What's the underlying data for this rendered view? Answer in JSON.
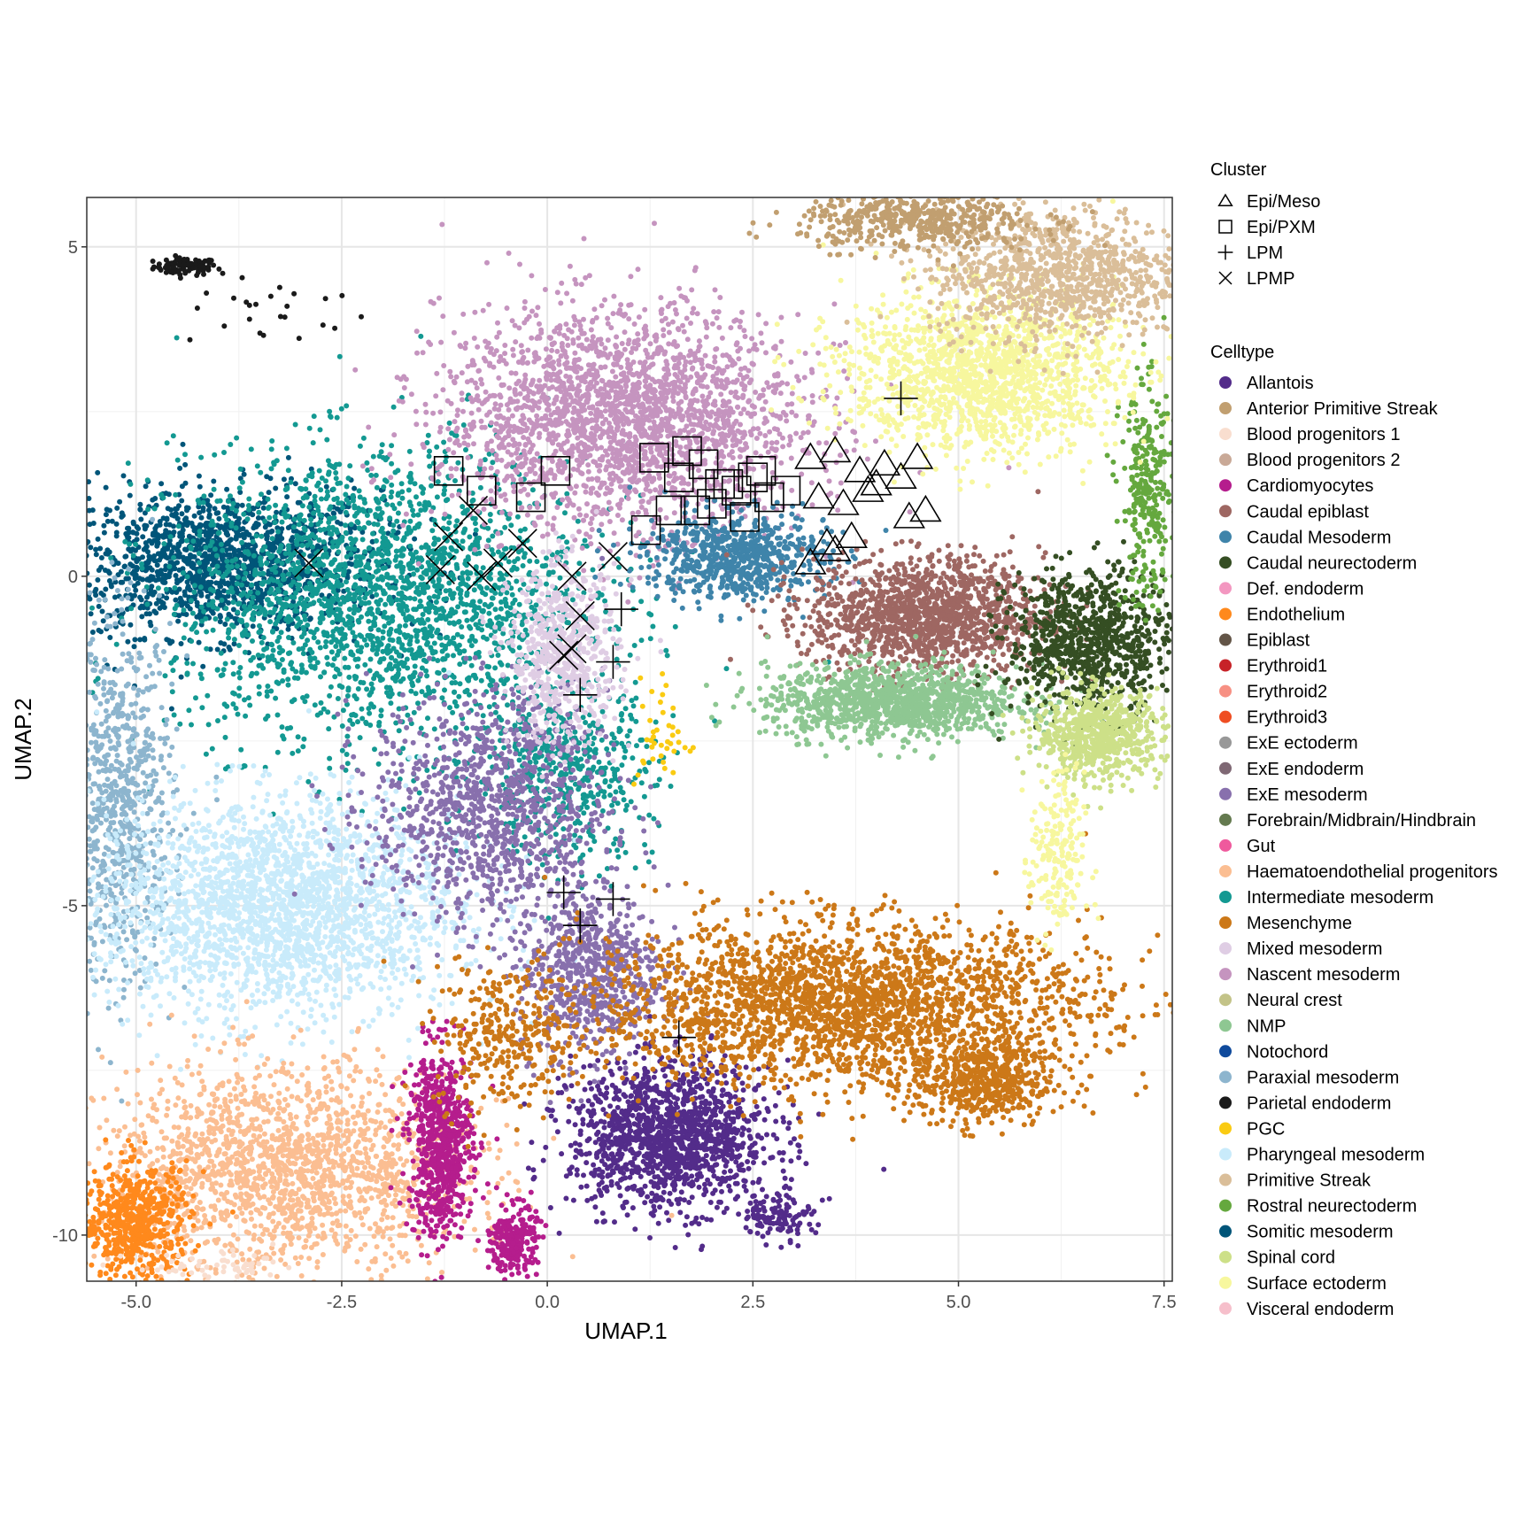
{
  "chart_data": {
    "type": "scatter",
    "xlabel": "UMAP.1",
    "ylabel": "UMAP.2",
    "xlim": [
      -5.6,
      7.6
    ],
    "ylim": [
      -10.7,
      5.75
    ],
    "xticks": [
      -5.0,
      -2.5,
      0.0,
      2.5,
      5.0,
      7.5
    ],
    "xtick_labels": [
      "-5.0",
      "-2.5",
      "0.0",
      "2.5",
      "5.0",
      "7.5"
    ],
    "yticks": [
      -10,
      -5,
      0,
      5
    ],
    "ytick_labels": [
      "-10",
      "-5",
      "0",
      "5"
    ],
    "grid": true,
    "legend_placement": "right",
    "legends": {
      "cluster_title": "Cluster",
      "celltype_title": "Celltype"
    },
    "clusters": [
      {
        "name": "Epi/Meso",
        "shape": "triangle"
      },
      {
        "name": "Epi/PXM",
        "shape": "square"
      },
      {
        "name": "LPM",
        "shape": "plus"
      },
      {
        "name": "LPMP",
        "shape": "cross"
      }
    ],
    "celltypes": [
      {
        "name": "Allantois",
        "color": "#532C8A"
      },
      {
        "name": "Anterior Primitive Streak",
        "color": "#C19F70"
      },
      {
        "name": "Blood progenitors 1",
        "color": "#F9DECF"
      },
      {
        "name": "Blood progenitors 2",
        "color": "#C9A997"
      },
      {
        "name": "Cardiomyocytes",
        "color": "#B51D8D"
      },
      {
        "name": "Caudal epiblast",
        "color": "#9E6762"
      },
      {
        "name": "Caudal Mesoderm",
        "color": "#3F84AA"
      },
      {
        "name": "Caudal neurectoderm",
        "color": "#354E23"
      },
      {
        "name": "Def. endoderm",
        "color": "#F397C0"
      },
      {
        "name": "Endothelium",
        "color": "#FF891C"
      },
      {
        "name": "Epiblast",
        "color": "#635547"
      },
      {
        "name": "Erythroid1",
        "color": "#C72228"
      },
      {
        "name": "Erythroid2",
        "color": "#F79083"
      },
      {
        "name": "Erythroid3",
        "color": "#EF4E22"
      },
      {
        "name": "ExE ectoderm",
        "color": "#989898"
      },
      {
        "name": "ExE endoderm",
        "color": "#7F6874"
      },
      {
        "name": "ExE mesoderm",
        "color": "#8870AD"
      },
      {
        "name": "Forebrain/Midbrain/Hindbrain",
        "color": "#647A4F"
      },
      {
        "name": "Gut",
        "color": "#EF5A9D"
      },
      {
        "name": "Haematoendothelial progenitors",
        "color": "#FBBE92"
      },
      {
        "name": "Intermediate mesoderm",
        "color": "#139992"
      },
      {
        "name": "Mesenchyme",
        "color": "#CC7818"
      },
      {
        "name": "Mixed mesoderm",
        "color": "#DFCDE4"
      },
      {
        "name": "Nascent mesoderm",
        "color": "#C594BF"
      },
      {
        "name": "Neural crest",
        "color": "#C3C388"
      },
      {
        "name": "NMP",
        "color": "#8EC792"
      },
      {
        "name": "Notochord",
        "color": "#0F4A9C"
      },
      {
        "name": "Paraxial mesoderm",
        "color": "#8DB5CE"
      },
      {
        "name": "Parietal endoderm",
        "color": "#1A1A1A"
      },
      {
        "name": "PGC",
        "color": "#FACB12"
      },
      {
        "name": "Pharyngeal mesoderm",
        "color": "#C9EBFB"
      },
      {
        "name": "Primitive Streak",
        "color": "#DABE99"
      },
      {
        "name": "Rostral neurectoderm",
        "color": "#65A83E"
      },
      {
        "name": "Somitic mesoderm",
        "color": "#005579"
      },
      {
        "name": "Spinal cord",
        "color": "#CDE088"
      },
      {
        "name": "Surface ectoderm",
        "color": "#F7F79E"
      },
      {
        "name": "Visceral endoderm",
        "color": "#F6BFCB"
      }
    ],
    "cell_clouds": [
      {
        "celltype": "Parietal endoderm",
        "x": -4.4,
        "y": 4.7,
        "rx": 0.35,
        "ry": 0.12,
        "n": 90
      },
      {
        "celltype": "Parietal endoderm",
        "x": -3.3,
        "y": 4.0,
        "rx": 1.0,
        "ry": 0.5,
        "n": 25
      },
      {
        "celltype": "Somitic mesoderm",
        "x": -4.0,
        "y": 0.2,
        "rx": 1.8,
        "ry": 1.0,
        "n": 1500
      },
      {
        "celltype": "Intermediate mesoderm",
        "x": -2.0,
        "y": -0.3,
        "rx": 2.3,
        "ry": 2.0,
        "n": 2300
      },
      {
        "celltype": "Intermediate mesoderm",
        "x": 0.2,
        "y": -3.0,
        "rx": 1.0,
        "ry": 1.2,
        "n": 500
      },
      {
        "celltype": "Paraxial mesoderm",
        "x": -5.2,
        "y": -3.5,
        "rx": 0.6,
        "ry": 2.4,
        "n": 800
      },
      {
        "celltype": "Pharyngeal mesoderm",
        "x": -3.3,
        "y": -5.0,
        "rx": 2.0,
        "ry": 1.5,
        "n": 2400
      },
      {
        "celltype": "Haematoendothelial progenitors",
        "x": -3.2,
        "y": -9.0,
        "rx": 2.0,
        "ry": 1.4,
        "n": 1800
      },
      {
        "celltype": "Endothelium",
        "x": -5.0,
        "y": -9.8,
        "rx": 0.6,
        "ry": 0.8,
        "n": 600
      },
      {
        "celltype": "Blood progenitors 1",
        "x": -4.0,
        "y": -10.5,
        "rx": 1.0,
        "ry": 0.2,
        "n": 60
      },
      {
        "celltype": "Cardiomyocytes",
        "x": -1.3,
        "y": -8.6,
        "rx": 0.35,
        "ry": 1.3,
        "n": 700
      },
      {
        "celltype": "Cardiomyocytes",
        "x": -0.4,
        "y": -10.1,
        "rx": 0.25,
        "ry": 0.5,
        "n": 250
      },
      {
        "celltype": "ExE mesoderm",
        "x": -0.7,
        "y": -3.5,
        "rx": 1.3,
        "ry": 1.6,
        "n": 1100
      },
      {
        "celltype": "ExE mesoderm",
        "x": 0.5,
        "y": -6.0,
        "rx": 0.8,
        "ry": 1.2,
        "n": 700
      },
      {
        "celltype": "Allantois",
        "x": 1.5,
        "y": -8.5,
        "rx": 1.1,
        "ry": 1.0,
        "n": 1400
      },
      {
        "celltype": "Allantois",
        "x": 2.8,
        "y": -9.7,
        "rx": 0.4,
        "ry": 0.3,
        "n": 120
      },
      {
        "celltype": "Mesenchyme",
        "x": 3.6,
        "y": -6.5,
        "rx": 2.8,
        "ry": 1.1,
        "n": 2600
      },
      {
        "celltype": "Mesenchyme",
        "x": 5.3,
        "y": -7.7,
        "rx": 0.8,
        "ry": 0.6,
        "n": 500
      },
      {
        "celltype": "Mesenchyme",
        "x": -0.5,
        "y": -7.0,
        "rx": 0.8,
        "ry": 1.0,
        "n": 300
      },
      {
        "celltype": "Nascent mesoderm",
        "x": 0.9,
        "y": 2.4,
        "rx": 2.0,
        "ry": 1.5,
        "n": 2400
      },
      {
        "celltype": "Mixed mesoderm",
        "x": 0.2,
        "y": -1.2,
        "rx": 0.6,
        "ry": 1.2,
        "n": 600
      },
      {
        "celltype": "Caudal Mesoderm",
        "x": 2.3,
        "y": 0.3,
        "rx": 1.0,
        "ry": 0.6,
        "n": 700
      },
      {
        "celltype": "Caudal epiblast",
        "x": 4.6,
        "y": -0.6,
        "rx": 1.3,
        "ry": 0.8,
        "n": 1400
      },
      {
        "celltype": "NMP",
        "x": 4.2,
        "y": -1.9,
        "rx": 1.4,
        "ry": 0.5,
        "n": 1200
      },
      {
        "celltype": "Caudal neurectoderm",
        "x": 6.6,
        "y": -1.0,
        "rx": 0.9,
        "ry": 1.0,
        "n": 900
      },
      {
        "celltype": "Spinal cord",
        "x": 6.7,
        "y": -2.4,
        "rx": 0.7,
        "ry": 0.6,
        "n": 700
      },
      {
        "celltype": "Rostral neurectoderm",
        "x": 7.3,
        "y": 1.2,
        "rx": 0.3,
        "ry": 1.5,
        "n": 300
      },
      {
        "celltype": "Surface ectoderm",
        "x": 5.3,
        "y": 3.1,
        "rx": 1.5,
        "ry": 1.1,
        "n": 1600
      },
      {
        "celltype": "Surface ectoderm",
        "x": 6.2,
        "y": -4.3,
        "rx": 0.3,
        "ry": 1.2,
        "n": 200
      },
      {
        "celltype": "Primitive Streak",
        "x": 6.2,
        "y": 4.6,
        "rx": 1.4,
        "ry": 0.9,
        "n": 1000
      },
      {
        "celltype": "Anterior Primitive Streak",
        "x": 4.5,
        "y": 5.4,
        "rx": 1.3,
        "ry": 0.4,
        "n": 500
      },
      {
        "celltype": "PGC",
        "x": 1.4,
        "y": -2.4,
        "rx": 0.3,
        "ry": 0.8,
        "n": 40
      }
    ],
    "cluster_points": [
      {
        "cluster": "Epi/Meso",
        "x": [
          3.2,
          3.5,
          3.8,
          4.1,
          4.3,
          4.5,
          3.3,
          3.6,
          4.0,
          4.4,
          3.4,
          3.7,
          3.2,
          3.5,
          4.6,
          3.9
        ],
        "y": [
          1.8,
          1.9,
          1.6,
          1.7,
          1.5,
          1.8,
          1.2,
          1.1,
          1.4,
          0.9,
          0.5,
          0.6,
          0.2,
          0.4,
          1.0,
          1.3
        ]
      },
      {
        "cluster": "Epi/PXM",
        "x": [
          -1.2,
          -0.8,
          -0.2,
          0.1,
          1.3,
          1.6,
          1.9,
          2.1,
          2.3,
          2.5,
          2.7,
          1.8,
          2.0,
          2.2,
          2.4,
          1.2,
          1.5,
          2.9,
          2.6,
          1.7
        ],
        "y": [
          1.6,
          1.3,
          1.2,
          1.6,
          1.8,
          1.5,
          1.7,
          1.4,
          1.3,
          1.5,
          1.2,
          1.0,
          1.1,
          1.4,
          0.9,
          0.7,
          1.0,
          1.3,
          1.6,
          1.9
        ]
      },
      {
        "cluster": "LPM",
        "x": [
          4.3,
          0.9,
          0.4,
          0.8,
          0.4,
          0.2,
          0.8,
          0.4,
          1.6
        ],
        "y": [
          2.7,
          -0.5,
          -1.8,
          -1.3,
          -5.3,
          -4.8,
          -4.9,
          -5.3,
          -7.0
        ]
      },
      {
        "cluster": "LPMP",
        "x": [
          -2.9,
          -1.2,
          -1.3,
          -0.8,
          -0.6,
          -0.3,
          0.3,
          0.4,
          0.3,
          0.2,
          0.8,
          -0.9
        ],
        "y": [
          0.2,
          0.6,
          0.1,
          0.0,
          0.2,
          0.5,
          0.0,
          -0.6,
          -1.1,
          -1.2,
          0.3,
          1.0
        ]
      }
    ]
  }
}
